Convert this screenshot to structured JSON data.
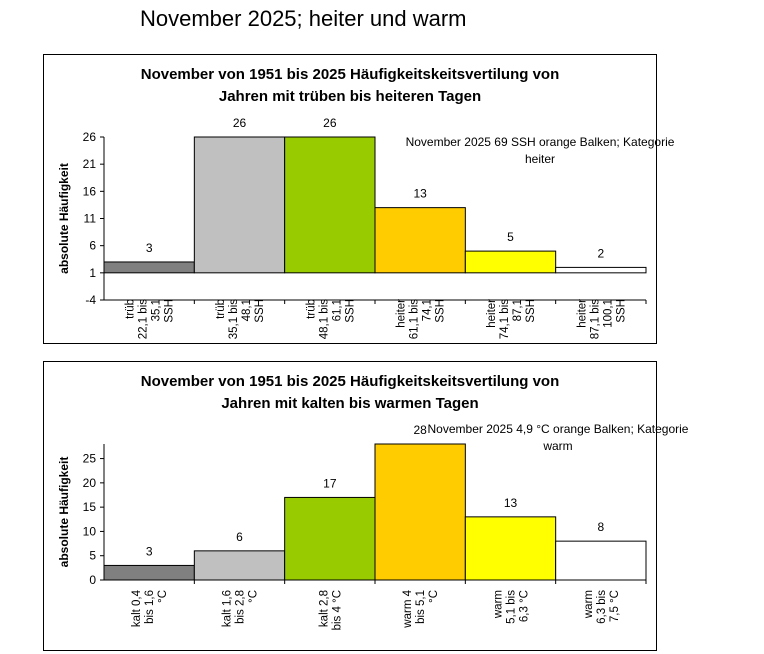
{
  "page_title": "November 2025; heiter und warm",
  "chart_data": [
    {
      "type": "bar",
      "title_lines": [
        "November von 1951 bis 2025 Häufigkeitskeitsvertilung von",
        "Jahren mit trüben bis heiteren  Tagen"
      ],
      "ylabel": "absolute Häufigkeit",
      "ylim": [
        -4,
        26
      ],
      "yticks": [
        -4,
        1,
        6,
        11,
        16,
        21,
        26
      ],
      "categories": [
        [
          "trüb",
          "22,1 bis",
          "35,1",
          "SSH"
        ],
        [
          "trüb",
          "35,1 bis",
          "48,1",
          "SSH"
        ],
        [
          "trüb",
          "48,1 bis",
          "61,1",
          "SSH"
        ],
        [
          "heiter",
          "61,1 bis",
          "74,1",
          "SSH"
        ],
        [
          "heiter",
          "74,1 bis",
          "87,1",
          "SSH"
        ],
        [
          "heiter",
          "87,1 bis",
          "100,1",
          "SSH"
        ]
      ],
      "values": [
        3,
        26,
        26,
        13,
        5,
        2
      ],
      "colors": [
        "#808080",
        "#c0c0c0",
        "#99cc00",
        "#ffcc00",
        "#ffff00",
        "#ffffff"
      ],
      "annotation_lines": [
        "November 2025 69 SSH orange Balken; Kategorie",
        "heiter"
      ]
    },
    {
      "type": "bar",
      "title_lines": [
        "November von 1951 bis 2025 Häufigkeitskeitsvertilung von",
        "Jahren mit kalten bis warmen  Tagen"
      ],
      "ylabel": "absolute Häufigkeit",
      "ylim": [
        0,
        28
      ],
      "yticks": [
        0,
        5,
        10,
        15,
        20,
        25
      ],
      "categories": [
        [
          "kalt 0,4",
          "bis 1,6",
          "°C"
        ],
        [
          "kalt 1,6",
          "bis 2,8",
          "°C"
        ],
        [
          "kalt 2,8",
          "bis 4 °C"
        ],
        [
          "warm 4",
          "bis 5,1",
          "°C"
        ],
        [
          "warm",
          "5,1 bis",
          "6,3 °C"
        ],
        [
          "warm",
          "6,3 bis",
          "7,5 °C"
        ]
      ],
      "values": [
        3,
        6,
        17,
        28,
        13,
        8
      ],
      "colors": [
        "#808080",
        "#c0c0c0",
        "#99cc00",
        "#ffcc00",
        "#ffff00",
        "#ffffff"
      ],
      "annotation_lines": [
        "November 2025 4,9 °C orange Balken; Kategorie",
        "warm"
      ]
    }
  ]
}
